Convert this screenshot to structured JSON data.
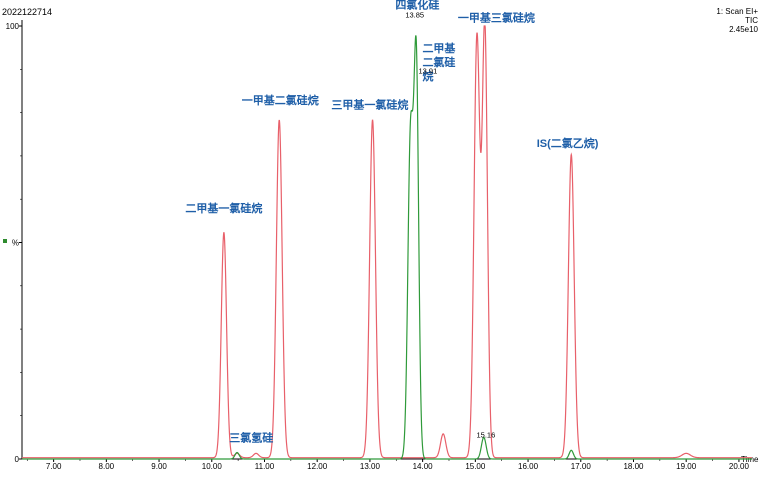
{
  "header": {
    "sample_id": "2022122714",
    "scan_mode": "1: Scan EI+",
    "trace": "TIC",
    "intensity": "2.45e10",
    "sample_color": "#2e8b2e"
  },
  "chart_data": {
    "type": "line",
    "title": "",
    "xlabel": "Time",
    "ylabel": "%",
    "xlim": [
      6.4,
      20.4
    ],
    "ylim": [
      0,
      100
    ],
    "x_ticks": [
      "7.00",
      "8.00",
      "9.00",
      "10.00",
      "11.00",
      "12.00",
      "13.00",
      "14.00",
      "15.00",
      "16.00",
      "17.00",
      "18.00",
      "19.00",
      "20.00"
    ],
    "x_tick_values": [
      7,
      8,
      9,
      10,
      11,
      12,
      13,
      14,
      15,
      16,
      17,
      18,
      19,
      20
    ],
    "y_ticks": [
      "100",
      "%",
      "0"
    ],
    "y_tick_values": [
      100,
      50,
      0
    ],
    "grid": false,
    "legend": "none",
    "series": [
      {
        "color": "#e8606a",
        "baseline": 0.3,
        "peaks": [
          {
            "rt": 10.23,
            "height": 52,
            "width": 0.05
          },
          {
            "rt": 10.48,
            "height": 1,
            "width": 0.05
          },
          {
            "rt": 10.84,
            "height": 1,
            "width": 0.05
          },
          {
            "rt": 11.28,
            "height": 78,
            "width": 0.055
          },
          {
            "rt": 13.05,
            "height": 78,
            "width": 0.055
          },
          {
            "rt": 14.39,
            "height": 5.5,
            "width": 0.05
          },
          {
            "rt": 15.03,
            "height": 97,
            "width": 0.055
          },
          {
            "rt": 15.18,
            "height": 99,
            "width": 0.05
          },
          {
            "rt": 16.82,
            "height": 70,
            "width": 0.055
          },
          {
            "rt": 19.0,
            "height": 1,
            "width": 0.08
          }
        ]
      },
      {
        "color": "#2f9a3a",
        "baseline": 0,
        "peaks": [
          {
            "rt": 10.48,
            "height": 1.5,
            "width": 0.04
          },
          {
            "rt": 13.77,
            "height": 74,
            "width": 0.05
          },
          {
            "rt": 13.88,
            "height": 90,
            "width": 0.045
          },
          {
            "rt": 15.16,
            "height": 5,
            "width": 0.045
          },
          {
            "rt": 16.82,
            "height": 2,
            "width": 0.04
          }
        ]
      }
    ],
    "peak_labels": [
      {
        "text": "二甲基一氯硅烷",
        "rt": 10.23,
        "y": 57
      },
      {
        "text": "一甲基二氯硅烷",
        "rt": 11.3,
        "y": 82
      },
      {
        "text": "三氯氢硅",
        "rt": 10.75,
        "y": 4
      },
      {
        "text": "三甲基一氯硅烷",
        "rt": 13.0,
        "y": 81
      },
      {
        "text": "四氯化硅",
        "rt": 13.9,
        "y": 104
      },
      {
        "text": "一甲基三氯硅烷",
        "rt": 15.4,
        "y": 101
      },
      {
        "text": "IS(二氯乙烷)",
        "rt": 16.75,
        "y": 72
      }
    ],
    "stacked_label": {
      "lines": [
        "二甲基",
        "二氯硅",
        "烷"
      ],
      "rt": 14.3,
      "y": 94
    },
    "retention_labels": [
      {
        "text": "13.85",
        "rt": 13.85,
        "y": 102
      },
      {
        "text": "13.91",
        "rt": 14.1,
        "y": 89
      },
      {
        "text": "15.16",
        "rt": 15.2,
        "y": 5
      }
    ],
    "label_color": "#1f5fa8"
  }
}
